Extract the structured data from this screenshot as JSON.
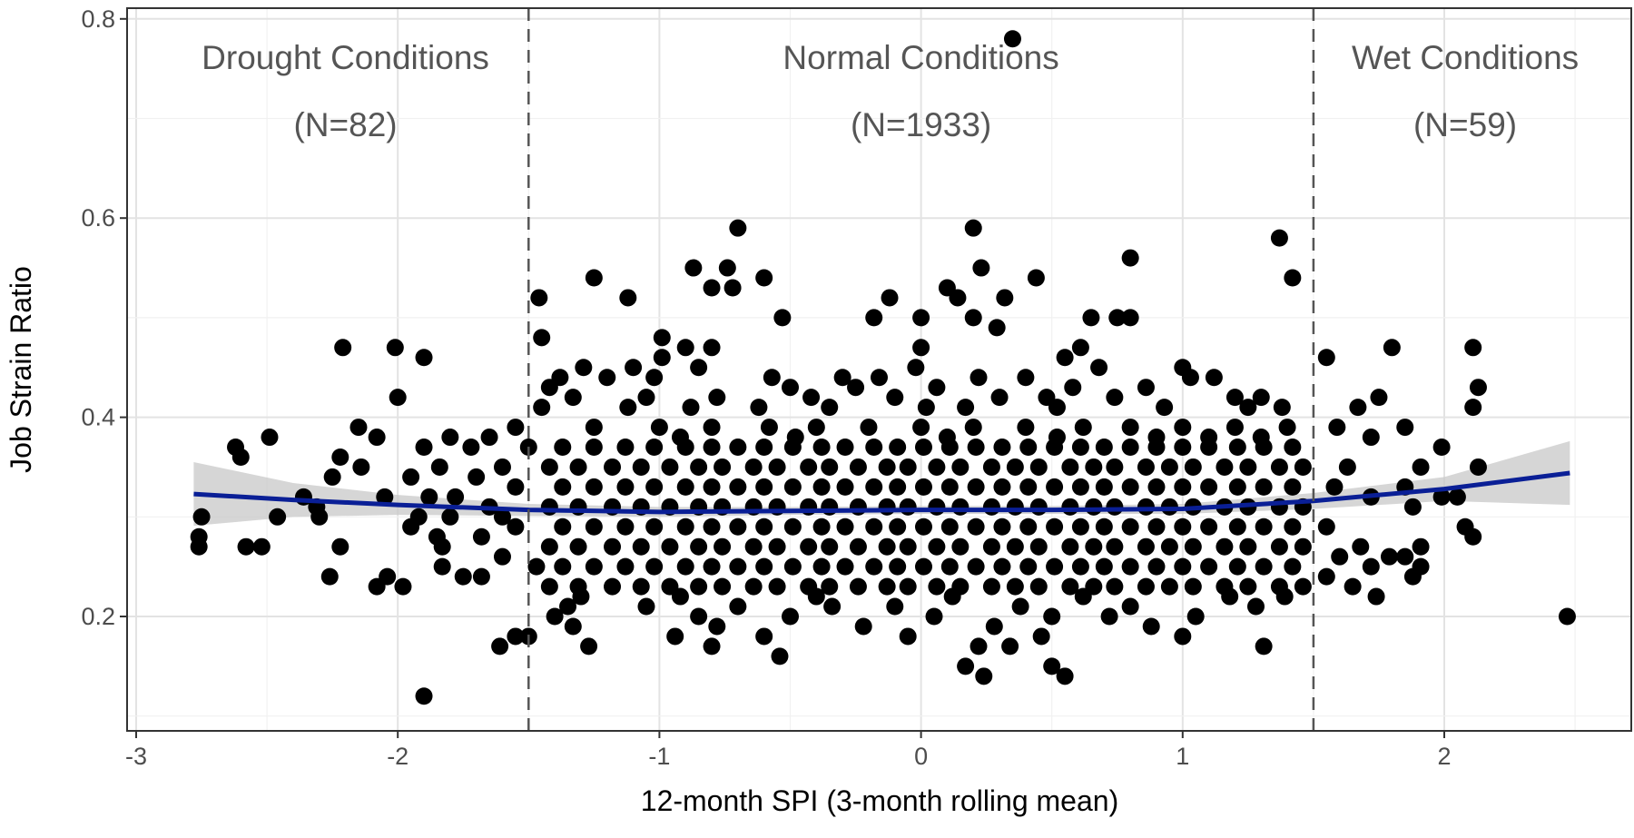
{
  "chart_data": {
    "type": "scatter",
    "title": "",
    "xlabel": "12-month SPI (3-month rolling mean)",
    "ylabel": "Job Strain Ratio",
    "xlim": [
      -3.03,
      2.7
    ],
    "ylim": [
      0.09,
      0.81
    ],
    "xticks": [
      -3,
      -2,
      -1,
      0,
      1,
      2
    ],
    "xtick_labels": [
      "-3",
      "-2",
      "-1",
      "0",
      "1",
      "2"
    ],
    "yticks": [
      0.2,
      0.4,
      0.6,
      0.8
    ],
    "ytick_labels": [
      "0.2",
      "0.4",
      "0.6",
      "0.8"
    ],
    "grid": true,
    "point_color": "#000000",
    "thresholds": [
      -1.5,
      1.5
    ],
    "regions": [
      {
        "name": "Drought Conditions",
        "n_label": "(N=82)",
        "center_x": -2.2
      },
      {
        "name": "Normal Conditions",
        "n_label": "(N=1933)",
        "center_x": 0.0
      },
      {
        "name": "Wet Conditions",
        "n_label": "(N=59)",
        "center_x": 2.08
      }
    ],
    "smooth": {
      "color": "#0a1f96",
      "band_color": "#c8c8c8",
      "x": [
        -2.78,
        -2.4,
        -2.0,
        -1.5,
        -1.0,
        -0.5,
        0.0,
        0.5,
        1.0,
        1.5,
        2.0,
        2.48
      ],
      "y": [
        0.323,
        0.317,
        0.312,
        0.307,
        0.305,
        0.306,
        0.307,
        0.307,
        0.308,
        0.316,
        0.328,
        0.344
      ],
      "lower": [
        0.291,
        0.3,
        0.302,
        0.301,
        0.3,
        0.302,
        0.303,
        0.303,
        0.303,
        0.308,
        0.316,
        0.312
      ],
      "upper": [
        0.355,
        0.334,
        0.322,
        0.313,
        0.31,
        0.31,
        0.311,
        0.311,
        0.313,
        0.324,
        0.34,
        0.376
      ]
    },
    "points": [
      {
        "y": 0.78,
        "x": [
          0.35
        ]
      },
      {
        "y": 0.59,
        "x": [
          -0.7,
          0.2
        ]
      },
      {
        "y": 0.58,
        "x": [
          1.37
        ]
      },
      {
        "y": 0.56,
        "x": [
          0.8
        ]
      },
      {
        "y": 0.55,
        "x": [
          -0.87,
          -0.74,
          0.23
        ]
      },
      {
        "y": 0.54,
        "x": [
          -1.25,
          -0.6,
          0.44,
          1.42
        ]
      },
      {
        "y": 0.53,
        "x": [
          -0.8,
          -0.72,
          0.1
        ]
      },
      {
        "y": 0.52,
        "x": [
          -1.46,
          -1.12,
          -0.12,
          0.14,
          0.32
        ]
      },
      {
        "y": 0.5,
        "x": [
          -0.53,
          -0.18,
          0.0,
          0.2,
          0.65,
          0.75,
          0.8
        ]
      },
      {
        "y": 0.49,
        "x": [
          0.29
        ]
      },
      {
        "y": 0.48,
        "x": [
          -1.45,
          -0.99
        ]
      },
      {
        "y": 0.47,
        "x": [
          -2.21,
          -2.01,
          -0.9,
          -0.8,
          0.0,
          0.61,
          1.8,
          2.11
        ]
      },
      {
        "y": 0.46,
        "x": [
          -1.9,
          -0.99,
          0.55,
          1.55
        ]
      },
      {
        "y": 0.45,
        "x": [
          -1.29,
          -1.1,
          -0.85,
          -0.02,
          0.68,
          1.0
        ]
      },
      {
        "y": 0.44,
        "x": [
          -1.38,
          -1.2,
          -1.02,
          -0.57,
          -0.3,
          -0.16,
          0.22,
          0.4,
          1.03,
          1.12
        ]
      },
      {
        "y": 0.43,
        "x": [
          -1.42,
          -0.5,
          -0.25,
          0.06,
          0.58,
          0.86,
          2.13
        ]
      },
      {
        "y": 0.42,
        "x": [
          -2.0,
          -1.33,
          -1.05,
          -0.78,
          -0.42,
          -0.1,
          0.3,
          0.48,
          0.74,
          1.2,
          1.3,
          1.75
        ]
      },
      {
        "y": 0.41,
        "x": [
          -1.45,
          -1.12,
          -0.88,
          -0.62,
          -0.35,
          0.02,
          0.17,
          0.52,
          0.93,
          1.25,
          1.38,
          1.67,
          2.11
        ]
      },
      {
        "y": 0.39,
        "x": [
          -2.15,
          -1.55,
          -1.25,
          -1.0,
          -0.8,
          -0.58,
          -0.4,
          -0.2,
          0.0,
          0.2,
          0.4,
          0.62,
          0.8,
          1.0,
          1.2,
          1.4,
          1.59,
          1.85
        ]
      },
      {
        "y": 0.38,
        "x": [
          -2.49,
          -2.08,
          -1.8,
          -1.65,
          -0.92,
          -0.48,
          0.1,
          0.52,
          0.9,
          1.1,
          1.3,
          1.72
        ]
      },
      {
        "y": 0.37,
        "x": [
          -2.62,
          -1.9,
          -1.72,
          -1.5,
          -1.37,
          -1.25,
          -1.13,
          -1.02,
          -0.9,
          -0.8,
          -0.7,
          -0.6,
          -0.49,
          -0.38,
          -0.29,
          -0.18,
          -0.09,
          0.01,
          0.11,
          0.21,
          0.31,
          0.41,
          0.51,
          0.61,
          0.7,
          0.8,
          0.9,
          1.0,
          1.1,
          1.21,
          1.31,
          1.42,
          1.99
        ]
      },
      {
        "y": 0.36,
        "x": [
          -2.22,
          -2.6
        ]
      },
      {
        "y": 0.35,
        "x": [
          -2.14,
          -1.84,
          -1.6,
          -1.42,
          -1.31,
          -1.18,
          -1.07,
          -0.96,
          -0.85,
          -0.76,
          -0.64,
          -0.55,
          -0.43,
          -0.35,
          -0.24,
          -0.13,
          -0.05,
          0.06,
          0.15,
          0.27,
          0.36,
          0.45,
          0.57,
          0.66,
          0.74,
          0.86,
          0.95,
          1.04,
          1.16,
          1.25,
          1.37,
          1.46,
          1.63,
          1.91,
          2.13
        ]
      },
      {
        "y": 0.34,
        "x": [
          -2.25,
          -1.95,
          -1.7
        ]
      },
      {
        "y": 0.33,
        "x": [
          -1.55,
          -1.37,
          -1.25,
          -1.13,
          -1.02,
          -0.9,
          -0.8,
          -0.7,
          -0.6,
          -0.49,
          -0.38,
          -0.29,
          -0.18,
          -0.09,
          0.01,
          0.11,
          0.21,
          0.31,
          0.41,
          0.51,
          0.61,
          0.7,
          0.8,
          0.9,
          1.0,
          1.1,
          1.21,
          1.31,
          1.42,
          1.58,
          1.85
        ]
      },
      {
        "y": 0.32,
        "x": [
          -2.36,
          -2.05,
          -1.88,
          -1.78,
          1.72,
          1.99,
          2.05
        ]
      },
      {
        "y": 0.31,
        "x": [
          -2.31,
          -1.65,
          -1.42,
          -1.31,
          -1.18,
          -1.07,
          -0.96,
          -0.85,
          -0.76,
          -0.64,
          -0.55,
          -0.43,
          -0.35,
          -0.24,
          -0.13,
          -0.05,
          0.06,
          0.15,
          0.27,
          0.36,
          0.45,
          0.57,
          0.66,
          0.74,
          0.86,
          0.95,
          1.04,
          1.16,
          1.25,
          1.37,
          1.46,
          1.88
        ]
      },
      {
        "y": 0.3,
        "x": [
          -2.75,
          -2.46,
          -2.3,
          -1.92,
          -1.8,
          -1.6
        ]
      },
      {
        "y": 0.29,
        "x": [
          -1.95,
          -1.55,
          -1.37,
          -1.25,
          -1.13,
          -1.02,
          -0.9,
          -0.8,
          -0.7,
          -0.6,
          -0.49,
          -0.38,
          -0.29,
          -0.18,
          -0.09,
          0.01,
          0.11,
          0.21,
          0.31,
          0.41,
          0.51,
          0.61,
          0.7,
          0.8,
          0.9,
          1.0,
          1.1,
          1.21,
          1.31,
          1.42,
          1.55,
          2.08
        ]
      },
      {
        "y": 0.28,
        "x": [
          -2.76,
          -1.85,
          -1.68,
          2.11
        ]
      },
      {
        "y": 0.27,
        "x": [
          -2.76,
          -2.58,
          -2.52,
          -2.22,
          -1.83,
          -1.42,
          -1.31,
          -1.18,
          -1.07,
          -0.96,
          -0.85,
          -0.76,
          -0.64,
          -0.55,
          -0.43,
          -0.35,
          -0.24,
          -0.13,
          -0.05,
          0.06,
          0.15,
          0.27,
          0.36,
          0.45,
          0.57,
          0.66,
          0.74,
          0.86,
          0.95,
          1.04,
          1.16,
          1.25,
          1.37,
          1.46,
          1.68,
          1.91
        ]
      },
      {
        "y": 0.26,
        "x": [
          -1.6,
          1.6,
          1.79,
          1.85
        ]
      },
      {
        "y": 0.25,
        "x": [
          -1.83,
          -1.47,
          -1.37,
          -1.25,
          -1.13,
          -1.02,
          -0.9,
          -0.8,
          -0.7,
          -0.6,
          -0.49,
          -0.38,
          -0.29,
          -0.18,
          -0.09,
          0.01,
          0.11,
          0.21,
          0.31,
          0.41,
          0.51,
          0.61,
          0.7,
          0.8,
          0.9,
          1.0,
          1.1,
          1.21,
          1.31,
          1.42,
          1.72,
          1.91
        ]
      },
      {
        "y": 0.24,
        "x": [
          -2.26,
          -2.04,
          -1.75,
          -1.68,
          1.55,
          1.88
        ]
      },
      {
        "y": 0.23,
        "x": [
          -2.08,
          -1.98,
          -1.42,
          -1.31,
          -1.18,
          -1.07,
          -0.96,
          -0.85,
          -0.76,
          -0.64,
          -0.55,
          -0.43,
          -0.35,
          -0.24,
          -0.13,
          -0.05,
          0.06,
          0.15,
          0.27,
          0.36,
          0.45,
          0.57,
          0.66,
          0.74,
          0.86,
          0.95,
          1.04,
          1.16,
          1.25,
          1.37,
          1.46,
          1.65
        ]
      },
      {
        "y": 0.22,
        "x": [
          -1.3,
          -0.92,
          -0.4,
          0.12,
          0.62,
          1.18,
          1.39,
          1.74
        ]
      },
      {
        "y": 0.21,
        "x": [
          -1.35,
          -1.05,
          -0.7,
          -0.34,
          -0.1,
          0.38,
          0.8,
          1.28
        ]
      },
      {
        "y": 0.2,
        "x": [
          -1.4,
          -0.85,
          -0.5,
          0.05,
          0.5,
          0.72,
          1.05,
          2.47
        ]
      },
      {
        "y": 0.19,
        "x": [
          -1.33,
          -0.78,
          -0.22,
          0.28,
          0.88
        ]
      },
      {
        "y": 0.18,
        "x": [
          -1.55,
          -1.5,
          -0.94,
          -0.6,
          -0.05,
          0.46,
          1.0
        ]
      },
      {
        "y": 0.17,
        "x": [
          -1.61,
          -1.27,
          -0.8,
          0.22,
          0.34,
          1.31
        ]
      },
      {
        "y": 0.16,
        "x": [
          -0.54
        ]
      },
      {
        "y": 0.15,
        "x": [
          0.17,
          0.5
        ]
      },
      {
        "y": 0.14,
        "x": [
          0.24,
          0.55
        ]
      },
      {
        "y": 0.12,
        "x": [
          -1.9
        ]
      }
    ]
  }
}
